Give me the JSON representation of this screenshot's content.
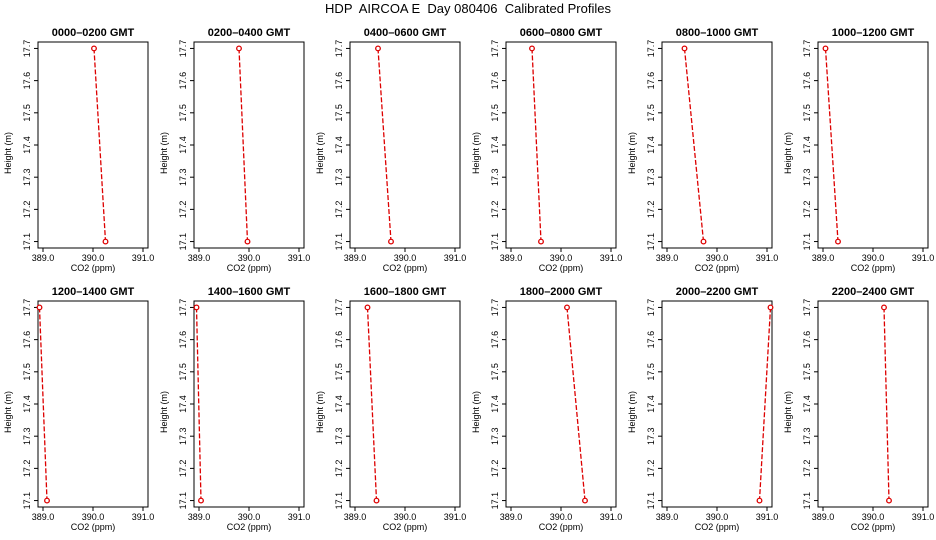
{
  "title": "HDP  AIRCOA E  Day 080406  Calibrated Profiles",
  "colors": {
    "line": "#dd0000",
    "point": "#dd0000",
    "axis": "#000000"
  },
  "chart_data": [
    {
      "type": "line",
      "title": "0000–0200 GMT",
      "xlabel": "CO2 (ppm)",
      "ylabel": "Height (m)",
      "xlim": [
        388.9,
        391.1
      ],
      "ylim": [
        17.08,
        17.72
      ],
      "xticks": [
        "389.0",
        "390.0",
        "391.0"
      ],
      "yticks": [
        "17.1",
        "17.2",
        "17.3",
        "17.4",
        "17.5",
        "17.6",
        "17.7"
      ],
      "series": [
        {
          "x": [
            390.02,
            390.25
          ],
          "y": [
            17.7,
            17.1
          ]
        }
      ]
    },
    {
      "type": "line",
      "title": "0200–0400 GMT",
      "xlabel": "CO2 (ppm)",
      "ylabel": "Height (m)",
      "xlim": [
        388.9,
        391.1
      ],
      "ylim": [
        17.08,
        17.72
      ],
      "xticks": [
        "389.0",
        "390.0",
        "391.0"
      ],
      "yticks": [
        "17.1",
        "17.2",
        "17.3",
        "17.4",
        "17.5",
        "17.6",
        "17.7"
      ],
      "series": [
        {
          "x": [
            389.8,
            389.97
          ],
          "y": [
            17.7,
            17.1
          ]
        }
      ]
    },
    {
      "type": "line",
      "title": "0400–0600 GMT",
      "xlabel": "CO2 (ppm)",
      "ylabel": "Height (m)",
      "xlim": [
        388.9,
        391.1
      ],
      "ylim": [
        17.08,
        17.72
      ],
      "xticks": [
        "389.0",
        "390.0",
        "391.0"
      ],
      "yticks": [
        "17.1",
        "17.2",
        "17.3",
        "17.4",
        "17.5",
        "17.6",
        "17.7"
      ],
      "series": [
        {
          "x": [
            389.46,
            389.72
          ],
          "y": [
            17.7,
            17.1
          ]
        }
      ]
    },
    {
      "type": "line",
      "title": "0600–0800 GMT",
      "xlabel": "CO2 (ppm)",
      "ylabel": "Height (m)",
      "xlim": [
        388.9,
        391.1
      ],
      "ylim": [
        17.08,
        17.72
      ],
      "xticks": [
        "389.0",
        "390.0",
        "391.0"
      ],
      "yticks": [
        "17.1",
        "17.2",
        "17.3",
        "17.4",
        "17.5",
        "17.6",
        "17.7"
      ],
      "series": [
        {
          "x": [
            389.42,
            389.6
          ],
          "y": [
            17.7,
            17.1
          ]
        }
      ]
    },
    {
      "type": "line",
      "title": "0800–1000 GMT",
      "xlabel": "CO2 (ppm)",
      "ylabel": "Height (m)",
      "xlim": [
        388.9,
        391.1
      ],
      "ylim": [
        17.08,
        17.72
      ],
      "xticks": [
        "389.0",
        "390.0",
        "391.0"
      ],
      "yticks": [
        "17.1",
        "17.2",
        "17.3",
        "17.4",
        "17.5",
        "17.6",
        "17.7"
      ],
      "series": [
        {
          "x": [
            389.35,
            389.73
          ],
          "y": [
            17.7,
            17.1
          ]
        }
      ]
    },
    {
      "type": "line",
      "title": "1000–1200 GMT",
      "xlabel": "CO2 (ppm)",
      "ylabel": "Height (m)",
      "xlim": [
        388.9,
        391.1
      ],
      "ylim": [
        17.08,
        17.72
      ],
      "xticks": [
        "389.0",
        "390.0",
        "391.0"
      ],
      "yticks": [
        "17.1",
        "17.2",
        "17.3",
        "17.4",
        "17.5",
        "17.6",
        "17.7"
      ],
      "series": [
        {
          "x": [
            389.05,
            389.3
          ],
          "y": [
            17.7,
            17.1
          ]
        }
      ]
    },
    {
      "type": "line",
      "title": "1200–1400 GMT",
      "xlabel": "CO2 (ppm)",
      "ylabel": "Height (m)",
      "xlim": [
        388.9,
        391.1
      ],
      "ylim": [
        17.08,
        17.72
      ],
      "xticks": [
        "389.0",
        "390.0",
        "391.0"
      ],
      "yticks": [
        "17.1",
        "17.2",
        "17.3",
        "17.4",
        "17.5",
        "17.6",
        "17.7"
      ],
      "series": [
        {
          "x": [
            388.93,
            389.08
          ],
          "y": [
            17.7,
            17.1
          ]
        }
      ]
    },
    {
      "type": "line",
      "title": "1400–1600 GMT",
      "xlabel": "CO2 (ppm)",
      "ylabel": "Height (m)",
      "xlim": [
        388.9,
        391.1
      ],
      "ylim": [
        17.08,
        17.72
      ],
      "xticks": [
        "389.0",
        "390.0",
        "391.0"
      ],
      "yticks": [
        "17.1",
        "17.2",
        "17.3",
        "17.4",
        "17.5",
        "17.6",
        "17.7"
      ],
      "series": [
        {
          "x": [
            388.95,
            389.04
          ],
          "y": [
            17.7,
            17.1
          ]
        }
      ]
    },
    {
      "type": "line",
      "title": "1600–1800 GMT",
      "xlabel": "CO2 (ppm)",
      "ylabel": "Height (m)",
      "xlim": [
        388.9,
        391.1
      ],
      "ylim": [
        17.08,
        17.72
      ],
      "xticks": [
        "389.0",
        "390.0",
        "391.0"
      ],
      "yticks": [
        "17.1",
        "17.2",
        "17.3",
        "17.4",
        "17.5",
        "17.6",
        "17.7"
      ],
      "series": [
        {
          "x": [
            389.25,
            389.43
          ],
          "y": [
            17.7,
            17.1
          ]
        }
      ]
    },
    {
      "type": "line",
      "title": "1800–2000 GMT",
      "xlabel": "CO2 (ppm)",
      "ylabel": "Height (m)",
      "xlim": [
        388.9,
        391.1
      ],
      "ylim": [
        17.08,
        17.72
      ],
      "xticks": [
        "389.0",
        "390.0",
        "391.0"
      ],
      "yticks": [
        "17.1",
        "17.2",
        "17.3",
        "17.4",
        "17.5",
        "17.6",
        "17.7"
      ],
      "series": [
        {
          "x": [
            390.12,
            390.48
          ],
          "y": [
            17.7,
            17.1
          ]
        }
      ]
    },
    {
      "type": "line",
      "title": "2000–2200 GMT",
      "xlabel": "CO2 (ppm)",
      "ylabel": "Height (m)",
      "xlim": [
        388.9,
        391.1
      ],
      "ylim": [
        17.08,
        17.72
      ],
      "xticks": [
        "389.0",
        "390.0",
        "391.0"
      ],
      "yticks": [
        "17.1",
        "17.2",
        "17.3",
        "17.4",
        "17.5",
        "17.6",
        "17.7"
      ],
      "series": [
        {
          "x": [
            391.07,
            390.85
          ],
          "y": [
            17.7,
            17.1
          ]
        }
      ]
    },
    {
      "type": "line",
      "title": "2200–2400 GMT",
      "xlabel": "CO2 (ppm)",
      "ylabel": "Height (m)",
      "xlim": [
        388.9,
        391.1
      ],
      "ylim": [
        17.08,
        17.72
      ],
      "xticks": [
        "389.0",
        "390.0",
        "391.0"
      ],
      "yticks": [
        "17.1",
        "17.2",
        "17.3",
        "17.4",
        "17.5",
        "17.6",
        "17.7"
      ],
      "series": [
        {
          "x": [
            390.22,
            390.32
          ],
          "y": [
            17.7,
            17.1
          ]
        }
      ]
    }
  ]
}
